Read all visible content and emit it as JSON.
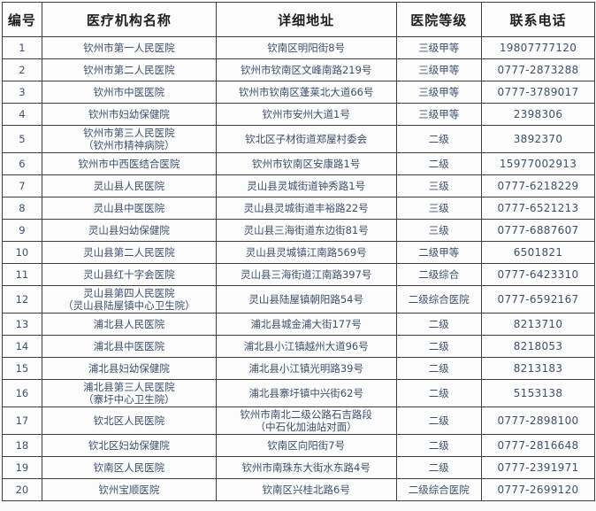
{
  "colors": {
    "body_text": "#3c4f6e",
    "header_text": "#1e1e1e",
    "border": "#3e3e3e",
    "cell_background": "#fcfcfc"
  },
  "table": {
    "headers": [
      "编号",
      "医疗机构名称",
      "详细地址",
      "医院等级",
      "联系电话"
    ],
    "rows": [
      {
        "id": "1",
        "name": "钦州市第一人民医院",
        "name2": "",
        "address": "钦南区明阳街8号",
        "address2": "",
        "grade": "三级甲等",
        "phone": "19807777120"
      },
      {
        "id": "2",
        "name": "钦州市第二人民医院",
        "name2": "",
        "address": "钦州市钦南区文峰南路219号",
        "address2": "",
        "grade": "三级甲等",
        "phone": "0777-2873288"
      },
      {
        "id": "3",
        "name": "钦州市中医医院",
        "name2": "",
        "address": "钦州市钦南区蓬莱北大道66号",
        "address2": "",
        "grade": "三级甲等",
        "phone": "0777-3789017"
      },
      {
        "id": "4",
        "name": "钦州市妇幼保健院",
        "name2": "",
        "address": "钦州市安州大道1号",
        "address2": "",
        "grade": "三级甲等",
        "phone": "2398306"
      },
      {
        "id": "5",
        "name": "钦州市第三人民医院",
        "name2": "（钦州市精神病院）",
        "address": "钦北区子材街道郑屋村委会",
        "address2": "",
        "grade": "二级",
        "phone": "3892370"
      },
      {
        "id": "6",
        "name": "钦州市中西医结合医院",
        "name2": "",
        "address": "钦州市钦南区安康路1号",
        "address2": "",
        "grade": "二级",
        "phone": "15977002913"
      },
      {
        "id": "7",
        "name": "灵山县人民医院",
        "name2": "",
        "address": "灵山县灵城街道钟秀路1号",
        "address2": "",
        "grade": "三级",
        "phone": "0777-6218229"
      },
      {
        "id": "8",
        "name": "灵山县中医医院",
        "name2": "",
        "address": "灵山县灵城街道丰裕路22号",
        "address2": "",
        "grade": "三级",
        "phone": "0777-6521213"
      },
      {
        "id": "9",
        "name": "灵山县妇幼保健院",
        "name2": "",
        "address": "灵山县三海街道东边街81号",
        "address2": "",
        "grade": "三级",
        "phone": "0777-6887607"
      },
      {
        "id": "10",
        "name": "灵山县第二人民医院",
        "name2": "",
        "address": "灵山县灵城镇江南路569号",
        "address2": "",
        "grade": "二级甲等",
        "phone": "6501821"
      },
      {
        "id": "11",
        "name": "灵山县红十字会医院",
        "name2": "",
        "address": "灵山县三海街道江南路397号",
        "address2": "",
        "grade": "二级综合",
        "phone": "0777-6423310"
      },
      {
        "id": "12",
        "name": "灵山县第四人民医院",
        "name2": "（灵山县陆屋镇中心卫生院）",
        "address": "灵山县陆屋镇朝阳路54号",
        "address2": "",
        "grade": "二级综合医院",
        "phone": "0777-6592167"
      },
      {
        "id": "13",
        "name": "浦北县人民医院",
        "name2": "",
        "address": "浦北县城金浦大街177号",
        "address2": "",
        "grade": "二级",
        "phone": "8213710"
      },
      {
        "id": "14",
        "name": "浦北县中医医院",
        "name2": "",
        "address": "浦北县小江镇越州大道96号",
        "address2": "",
        "grade": "二级",
        "phone": "8218053"
      },
      {
        "id": "15",
        "name": "浦北县妇幼保健院",
        "name2": "",
        "address": "浦北县小江镇光明路39号",
        "address2": "",
        "grade": "二级",
        "phone": "8213183"
      },
      {
        "id": "16",
        "name": "浦北县第三人民医院",
        "name2": "（寨圩中心卫生院）",
        "address": "浦北县寨圩镇中兴街62号",
        "address2": "",
        "grade": "二级",
        "phone": "5153138"
      },
      {
        "id": "17",
        "name": "钦北区人民医院",
        "name2": "",
        "address": "钦州市南北二级公路石吉路段",
        "address2": "（中石化加油站对面）",
        "grade": "二级",
        "phone": "0777-2898100"
      },
      {
        "id": "18",
        "name": "钦北区妇幼保健院",
        "name2": "",
        "address": "钦南区向阳街7号",
        "address2": "",
        "grade": "二级",
        "phone": "0777-2816648"
      },
      {
        "id": "19",
        "name": "钦南区人民医院",
        "name2": "",
        "address": "钦州市南珠东大街水东路4号",
        "address2": "",
        "grade": "二级",
        "phone": "0777-2391971"
      },
      {
        "id": "20",
        "name": "钦州宝顺医院",
        "name2": "",
        "address": "钦南区兴桂北路6号",
        "address2": "",
        "grade": "二级综合医院",
        "phone": "0777-2699120"
      }
    ]
  }
}
